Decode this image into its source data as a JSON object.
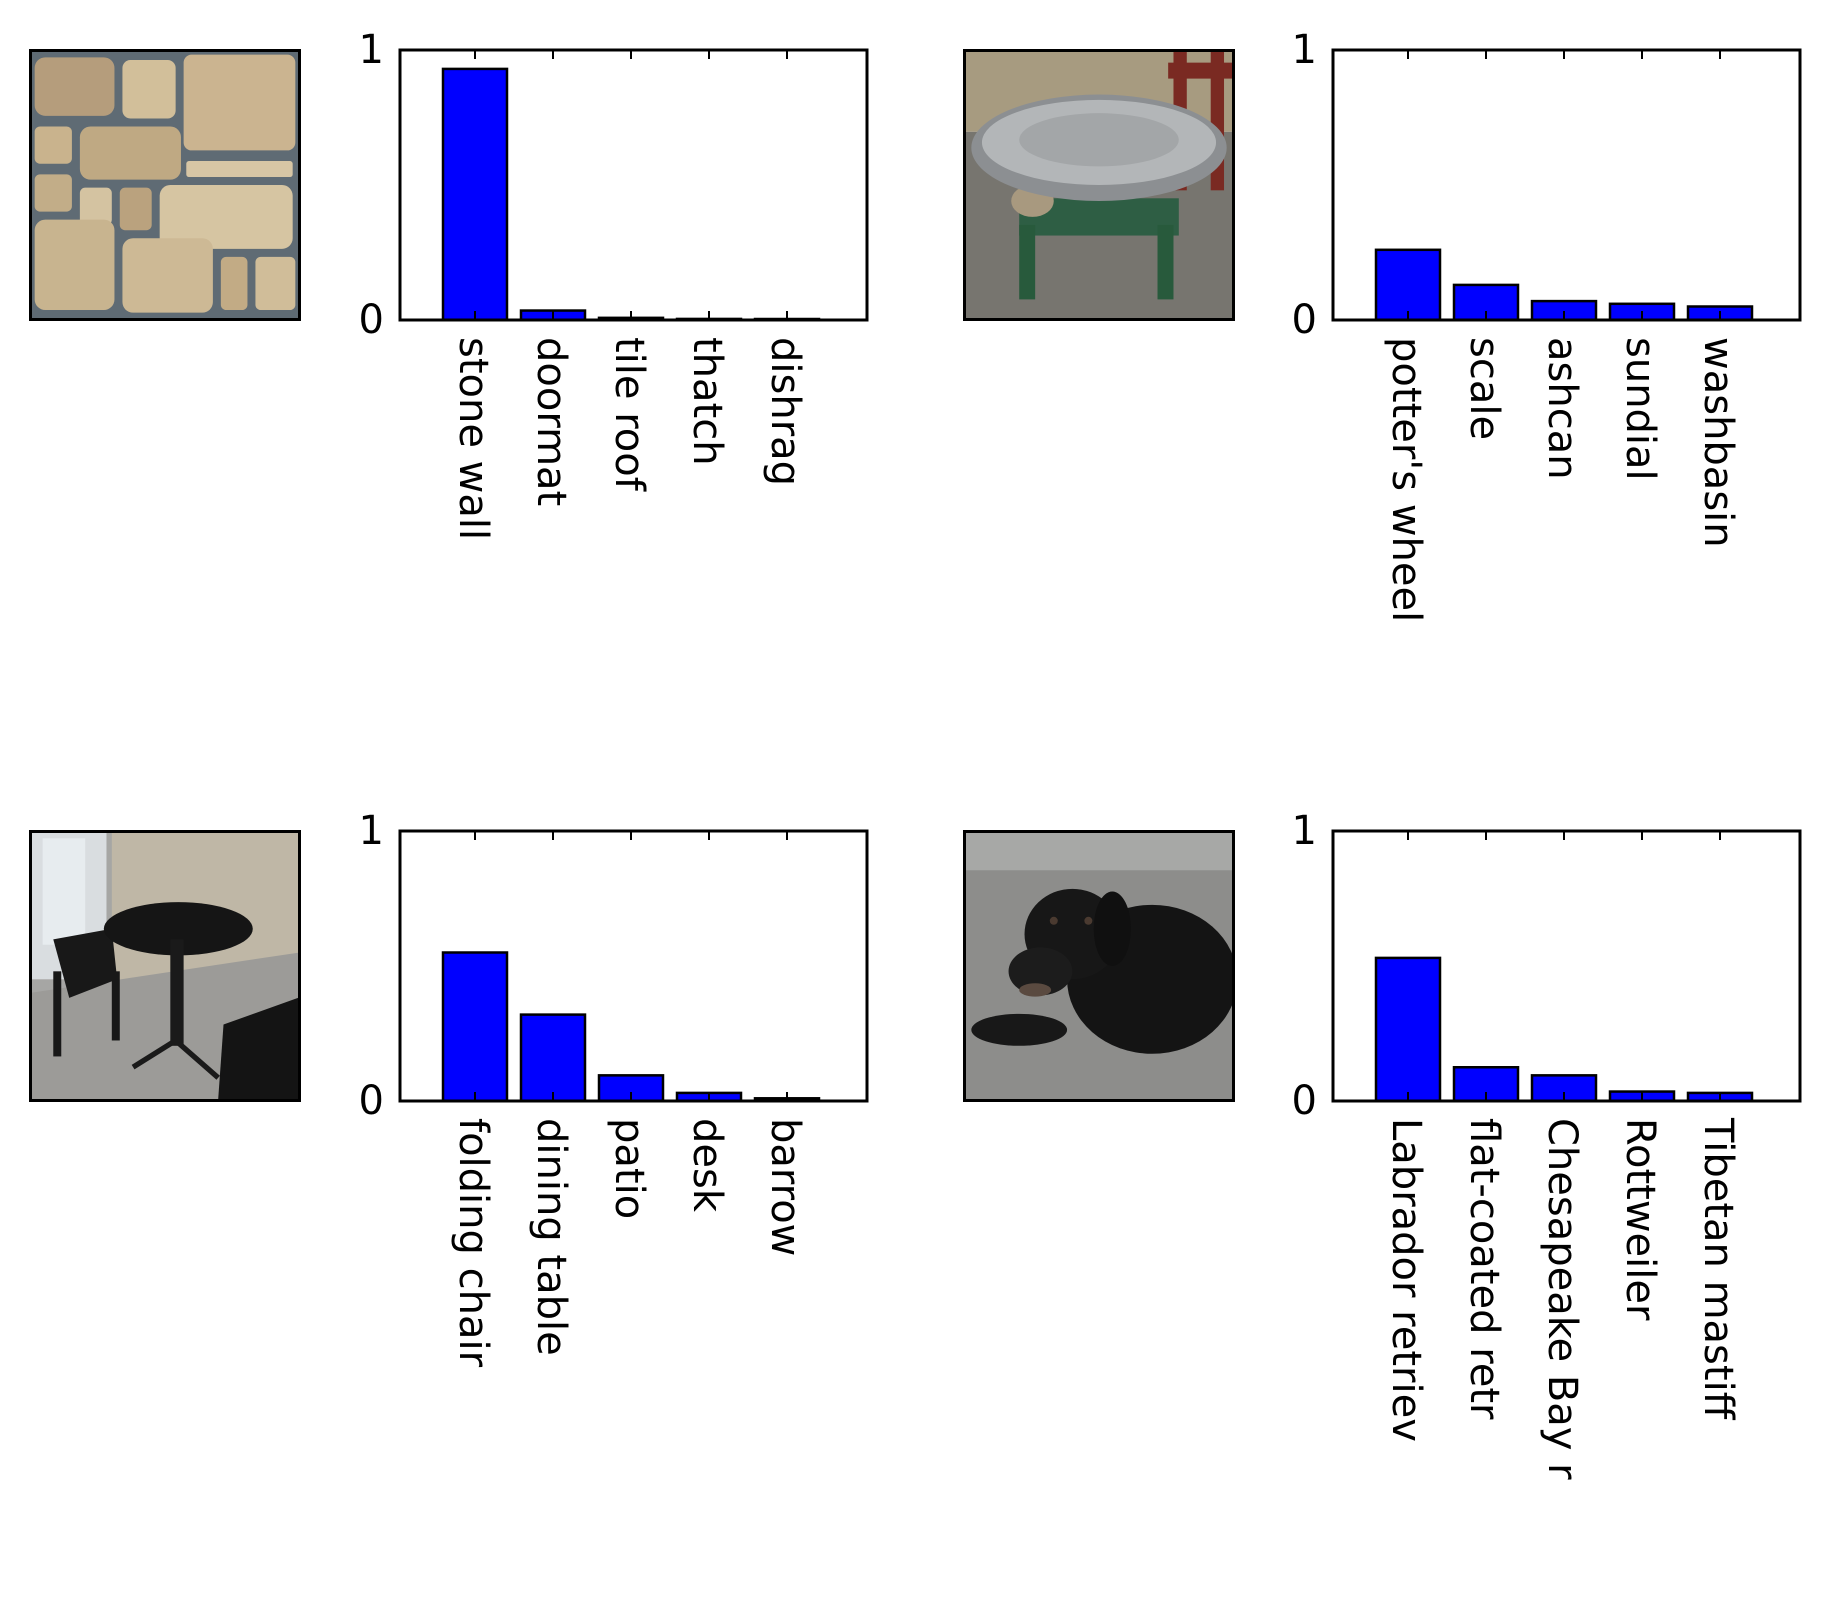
{
  "axis": {
    "tick_max": "1",
    "tick_min": "0"
  },
  "bar_color": "#0000ff",
  "chart_data": [
    {
      "type": "bar",
      "image": "stone-wall-photo",
      "categories": [
        "stone wall",
        "doormat",
        "tile roof",
        "thatch",
        "dishrag"
      ],
      "values": [
        0.93,
        0.035,
        0.008,
        0.004,
        0.003
      ],
      "ylim": [
        0,
        1
      ],
      "yticks": [
        "0",
        "1"
      ],
      "grid": false
    },
    {
      "type": "bar",
      "image": "round-metal-table-photo",
      "categories": [
        "potter's wheel",
        "scale",
        "ashcan",
        "sundial",
        "washbasin"
      ],
      "values": [
        0.26,
        0.13,
        0.07,
        0.06,
        0.05
      ],
      "ylim": [
        0,
        1
      ],
      "yticks": [
        "0",
        "1"
      ],
      "grid": false
    },
    {
      "type": "bar",
      "image": "patio-table-chairs-photo",
      "categories": [
        "folding chair",
        "dining table",
        "patio",
        "desk",
        "barrow"
      ],
      "values": [
        0.55,
        0.32,
        0.095,
        0.03,
        0.01
      ],
      "ylim": [
        0,
        1
      ],
      "yticks": [
        "0",
        "1"
      ],
      "grid": false
    },
    {
      "type": "bar",
      "image": "black-labrador-photo",
      "categories": [
        "Labrador retriev",
        "flat-coated retr",
        "Chesapeake Bay r",
        "Rottweiler",
        "Tibetan mastiff"
      ],
      "values": [
        0.53,
        0.125,
        0.095,
        0.035,
        0.03
      ],
      "ylim": [
        0,
        1
      ],
      "yticks": [
        "0",
        "1"
      ],
      "grid": false
    }
  ]
}
